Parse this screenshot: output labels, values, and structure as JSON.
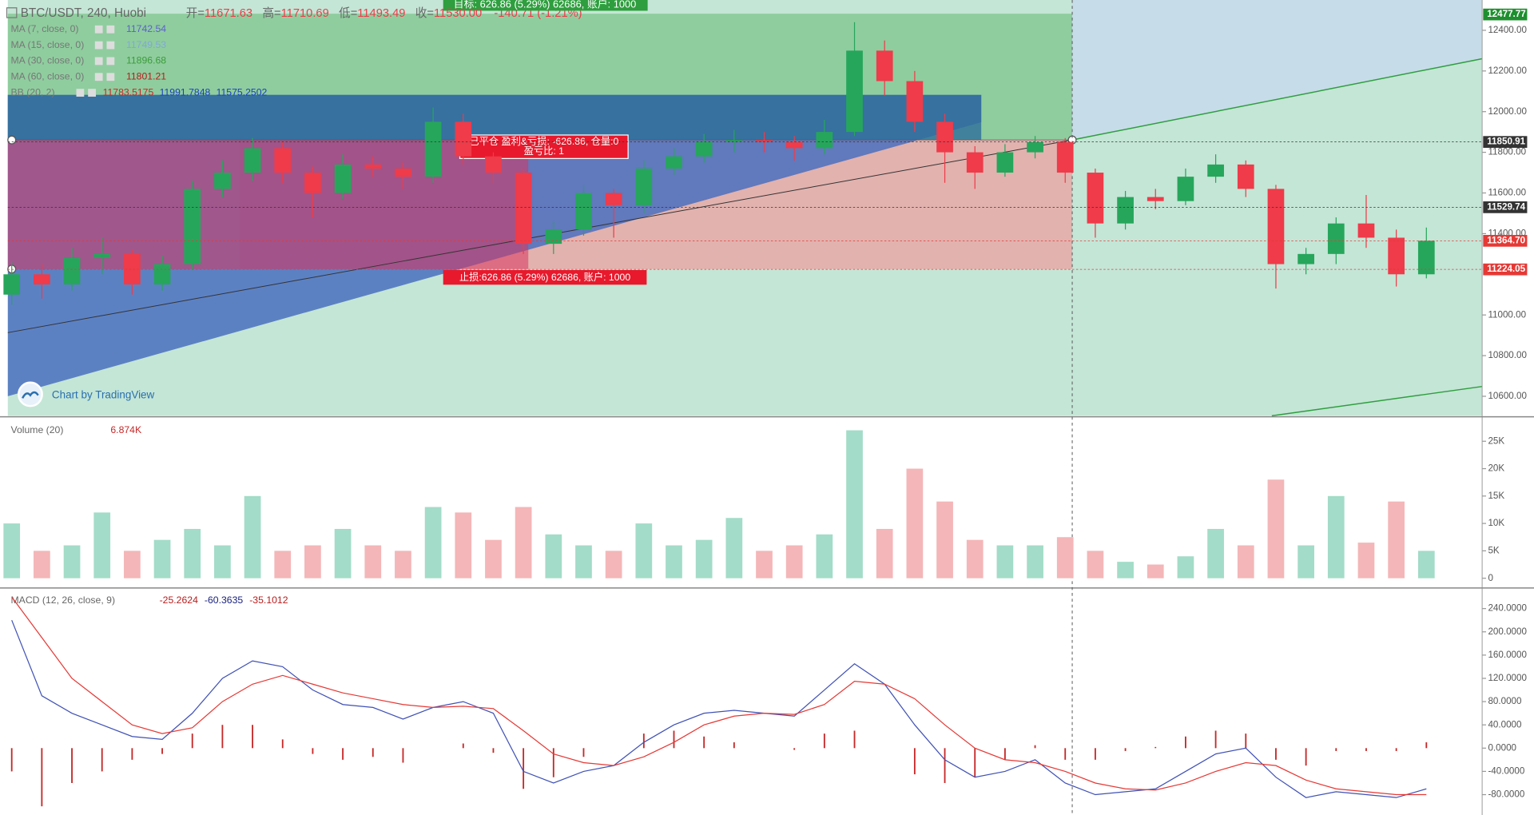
{
  "header": {
    "symbol": "BTC/USDT, 240, Huobi",
    "ohlc": [
      {
        "label": "开=",
        "value": "11671.63"
      },
      {
        "label": "高=",
        "value": "11710.69"
      },
      {
        "label": "低=",
        "value": "11493.49"
      },
      {
        "label": "收=",
        "value": "11530.00"
      }
    ],
    "change": "-140.71 (-1.21%)"
  },
  "indicators": [
    {
      "name": "MA (7, close, 0)",
      "values": [
        "11742.54"
      ],
      "colors": [
        "#5c5fd0"
      ]
    },
    {
      "name": "MA (15, close, 0)",
      "values": [
        "11749.53"
      ],
      "colors": [
        "#7fa8d8"
      ]
    },
    {
      "name": "MA (30, close, 0)",
      "values": [
        "11896.68"
      ],
      "colors": [
        "#3c9c3c"
      ]
    },
    {
      "name": "MA (60, close, 0)",
      "values": [
        "11801.21"
      ],
      "colors": [
        "#b71c1c"
      ]
    },
    {
      "name": "BB (20, 2)",
      "values": [
        "11783.5175",
        "11991.7848",
        "11575.2502"
      ],
      "colors": [
        "#c62828",
        "#1a3fbf",
        "#1a3fbf"
      ]
    }
  ],
  "annotations": {
    "target": "目标: 626.86 (5.29%) 62686, 账户: 1000",
    "closed": [
      "已平仓 盈利&亏损: -626.86, 仓量:0",
      "盈亏比: 1"
    ],
    "stop": "止损:626.86 (5.29%) 62686, 账户: 1000",
    "watermark": "Chart by TradingView"
  },
  "price_pane": {
    "ylim": [
      10504,
      12549
    ],
    "ticks": [
      {
        "value": 12400,
        "label": "12400.00"
      },
      {
        "value": 12200,
        "label": "12200.00"
      },
      {
        "value": 12000,
        "label": "12000.00"
      },
      {
        "value": 11800,
        "label": "11800.00"
      },
      {
        "value": 11600,
        "label": "11600.00"
      },
      {
        "value": 11400,
        "label": "11400.00"
      },
      {
        "value": 11000,
        "label": "11000.00"
      },
      {
        "value": 10800,
        "label": "10800.00"
      },
      {
        "value": 10600,
        "label": "10600.00"
      }
    ],
    "markers": [
      {
        "value": 12477.77,
        "label": "12477.77",
        "color": "#1e8f2e"
      },
      {
        "value": 11850.91,
        "label": "11850.91",
        "color": "#333333"
      },
      {
        "value": 11529.74,
        "label": "11529.74",
        "color": "#333333"
      },
      {
        "value": 11364.7,
        "label": "11364.70",
        "color": "#e53935"
      },
      {
        "value": 11224.05,
        "label": "11224.05",
        "color": "#e53935"
      }
    ],
    "up_color": "#26a65b",
    "down_color": "#ef3b4a",
    "candles": [
      [
        11100,
        11260,
        11050,
        11200
      ],
      [
        11200,
        11250,
        11080,
        11150
      ],
      [
        11150,
        11330,
        11120,
        11280
      ],
      [
        11280,
        11380,
        11200,
        11300
      ],
      [
        11300,
        11320,
        11100,
        11150
      ],
      [
        11150,
        11290,
        11120,
        11250
      ],
      [
        11250,
        11660,
        11220,
        11620
      ],
      [
        11620,
        11760,
        11580,
        11700
      ],
      [
        11700,
        11870,
        11660,
        11820
      ],
      [
        11820,
        11850,
        11650,
        11700
      ],
      [
        11700,
        11730,
        11480,
        11600
      ],
      [
        11600,
        11790,
        11570,
        11740
      ],
      [
        11740,
        11780,
        11680,
        11720
      ],
      [
        11720,
        11750,
        11620,
        11680
      ],
      [
        11680,
        12020,
        11650,
        11950
      ],
      [
        11950,
        11990,
        11740,
        11780
      ],
      [
        11780,
        11800,
        11650,
        11700
      ],
      [
        11700,
        11720,
        11300,
        11350
      ],
      [
        11350,
        11460,
        11300,
        11420
      ],
      [
        11420,
        11640,
        11390,
        11600
      ],
      [
        11600,
        11620,
        11380,
        11540
      ],
      [
        11540,
        11760,
        11500,
        11720
      ],
      [
        11720,
        11820,
        11690,
        11780
      ],
      [
        11780,
        11890,
        11750,
        11850
      ],
      [
        11850,
        11910,
        11800,
        11860
      ],
      [
        11860,
        11900,
        11800,
        11850
      ],
      [
        11850,
        11880,
        11760,
        11820
      ],
      [
        11820,
        11960,
        11790,
        11900
      ],
      [
        11900,
        12440,
        11880,
        12300
      ],
      [
        12300,
        12350,
        12080,
        12150
      ],
      [
        12150,
        12200,
        11900,
        11950
      ],
      [
        11950,
        11990,
        11650,
        11800
      ],
      [
        11800,
        11830,
        11620,
        11700
      ],
      [
        11700,
        11840,
        11680,
        11800
      ],
      [
        11800,
        11880,
        11770,
        11850
      ],
      [
        11850,
        11870,
        11650,
        11700
      ],
      [
        11700,
        11720,
        11380,
        11450
      ],
      [
        11450,
        11610,
        11420,
        11580
      ],
      [
        11580,
        11620,
        11520,
        11560
      ],
      [
        11560,
        11720,
        11540,
        11680
      ],
      [
        11680,
        11790,
        11650,
        11740
      ],
      [
        11740,
        11760,
        11580,
        11620
      ],
      [
        11620,
        11640,
        11130,
        11250
      ],
      [
        11250,
        11330,
        11200,
        11300
      ],
      [
        11300,
        11480,
        11250,
        11450
      ],
      [
        11450,
        11590,
        11330,
        11380
      ],
      [
        11380,
        11420,
        11140,
        11200
      ],
      [
        11200,
        11430,
        11180,
        11365
      ]
    ]
  },
  "volume_pane": {
    "title": "Volume (20)",
    "last": "6.874K",
    "ylim": [
      -1607,
      29286
    ],
    "ticks": [
      {
        "value": 25000,
        "label": "25K"
      },
      {
        "value": 20000,
        "label": "20K"
      },
      {
        "value": 15000,
        "label": "15K"
      },
      {
        "value": 10000,
        "label": "10K"
      },
      {
        "value": 5000,
        "label": "5K"
      },
      0
    ],
    "up_color": "#a3dcc8",
    "down_color": "#f4b6b8",
    "values": [
      10000,
      5000,
      6000,
      12000,
      5000,
      7000,
      9000,
      6000,
      15000,
      5000,
      6000,
      9000,
      6000,
      5000,
      13000,
      12000,
      7000,
      13000,
      8000,
      6000,
      5000,
      10000,
      6000,
      7000,
      11000,
      5000,
      6000,
      8000,
      27000,
      9000,
      20000,
      14000,
      7000,
      6000,
      6000,
      7500,
      5000,
      3000,
      2500,
      4000,
      9000,
      6000,
      18000,
      6000,
      15000,
      6500,
      14000,
      5000
    ]
  },
  "macd_pane": {
    "title": "MACD (12, 26, close, 9)",
    "readouts": [
      {
        "text": "-25.2624",
        "color": "#b71c1c"
      },
      {
        "text": "-60.3635",
        "color": "#1a237e"
      },
      {
        "text": "-35.1012",
        "color": "#b71c1c"
      }
    ],
    "ylim": [
      -115,
      272
    ],
    "ticks": [
      {
        "value": 240,
        "label": "240.0000"
      },
      {
        "value": 200,
        "label": "200.0000"
      },
      {
        "value": 160,
        "label": "160.0000"
      },
      {
        "value": 120,
        "label": "120.0000"
      },
      {
        "value": 80,
        "label": "80.0000"
      },
      {
        "value": 40,
        "label": "40.0000"
      },
      {
        "value": 0,
        "label": "0.0000"
      },
      {
        "value": -40,
        "label": "-40.0000"
      },
      {
        "value": -80,
        "label": "-80.0000"
      }
    ],
    "macd_color": "#3f51b5",
    "signal_color": "#e53935",
    "histogram_color": "#c62828",
    "macd": [
      220,
      90,
      60,
      40,
      20,
      15,
      60,
      120,
      150,
      140,
      100,
      75,
      70,
      50,
      70,
      80,
      60,
      -40,
      -60,
      -40,
      -30,
      10,
      40,
      60,
      65,
      60,
      55,
      100,
      145,
      110,
      40,
      -20,
      -50,
      -40,
      -20,
      -60,
      -80,
      -75,
      -70,
      -40,
      -10,
      0,
      -50,
      -85,
      -75,
      -80,
      -85,
      -70
    ],
    "signal": [
      260,
      190,
      120,
      80,
      40,
      25,
      35,
      80,
      110,
      125,
      110,
      95,
      85,
      75,
      70,
      72,
      68,
      30,
      -10,
      -25,
      -30,
      -15,
      10,
      40,
      55,
      60,
      58,
      75,
      115,
      110,
      85,
      40,
      0,
      -20,
      -25,
      -40,
      -60,
      -70,
      -72,
      -60,
      -40,
      -25,
      -30,
      -55,
      -70,
      -75,
      -80,
      -80
    ],
    "histogram": [
      -40,
      -100,
      -60,
      -40,
      -20,
      -10,
      25,
      40,
      40,
      15,
      -10,
      -20,
      -15,
      -25,
      0,
      8,
      -8,
      -70,
      -50,
      -15,
      0,
      25,
      30,
      20,
      10,
      0,
      -3,
      25,
      30,
      0,
      -45,
      -60,
      -50,
      -20,
      5,
      -20,
      -20,
      -5,
      2,
      20,
      30,
      25,
      -20,
      -30,
      -5,
      -5,
      -5,
      10
    ]
  }
}
